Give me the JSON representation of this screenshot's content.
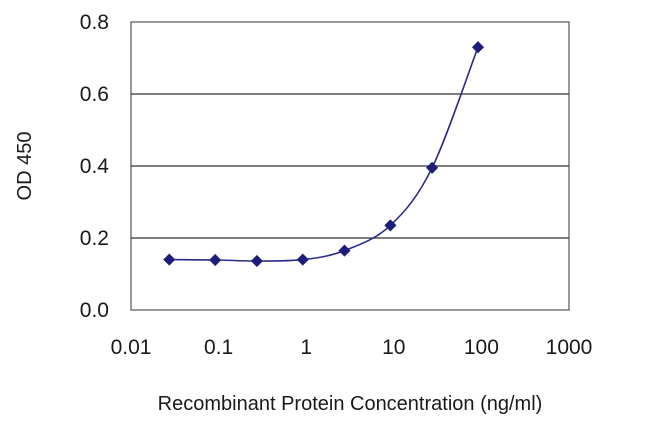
{
  "chart_data": {
    "type": "line",
    "title": "",
    "xlabel": "Recombinant Protein Concentration (ng/ml)",
    "ylabel": "OD 450",
    "x_scale": "log",
    "xlim": [
      0.01,
      1000
    ],
    "ylim": [
      0,
      0.8
    ],
    "x_ticks": [
      "0.01",
      "0.1",
      "1",
      "10",
      "100",
      "1000"
    ],
    "y_ticks": [
      "0.0",
      "0.2",
      "0.4",
      "0.6",
      "0.8"
    ],
    "grid": "horizontal",
    "legend": "none",
    "series": [
      {
        "color": "#2b2b8c",
        "marker": "diamond",
        "points": [
          {
            "x": 0.0274,
            "y": 0.14
          },
          {
            "x": 0.0914,
            "y": 0.139
          },
          {
            "x": 0.274,
            "y": 0.136
          },
          {
            "x": 0.914,
            "y": 0.14
          },
          {
            "x": 2.74,
            "y": 0.165
          },
          {
            "x": 9.14,
            "y": 0.235
          },
          {
            "x": 27.4,
            "y": 0.395
          },
          {
            "x": 91.4,
            "y": 0.73
          }
        ]
      }
    ]
  }
}
